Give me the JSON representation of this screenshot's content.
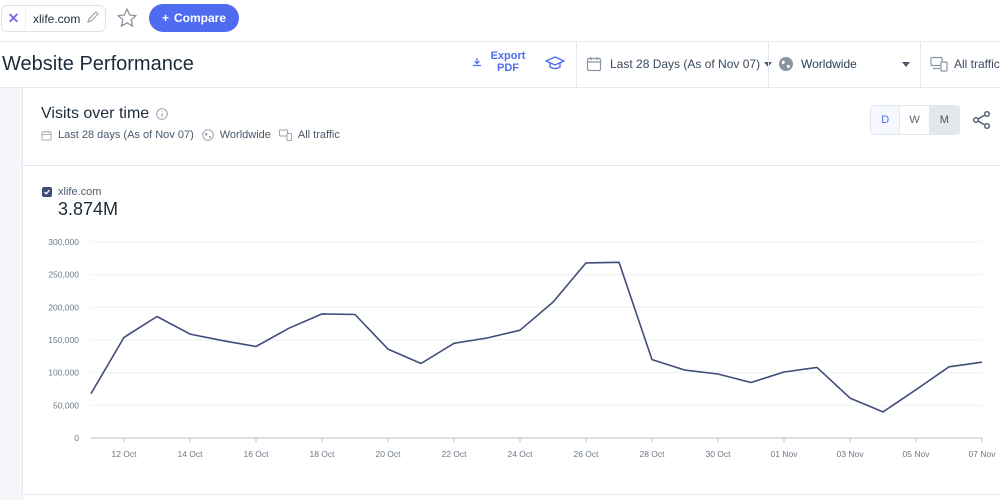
{
  "topbar": {
    "site_name": "xlife.com",
    "compare_label": "Compare"
  },
  "header": {
    "title": "Website Performance",
    "export_line1": "Export",
    "export_line2": "PDF",
    "date_range": "Last 28 Days (As of Nov 07)",
    "geo": "Worldwide",
    "traffic": "All traffic"
  },
  "card": {
    "title": "Visits over time",
    "sub_date": "Last 28 days (As of Nov 07)",
    "sub_geo": "Worldwide",
    "sub_traffic": "All traffic",
    "granularity": [
      "D",
      "W",
      "M"
    ],
    "legend_site": "xlife.com",
    "total": "3.874M"
  },
  "colors": {
    "accent": "#4f6cf0",
    "line": "#3f4e78",
    "grid": "#eef0f3"
  },
  "chart_data": {
    "type": "line",
    "x": [
      "11 Oct",
      "12 Oct",
      "13 Oct",
      "14 Oct",
      "15 Oct",
      "16 Oct",
      "17 Oct",
      "18 Oct",
      "19 Oct",
      "20 Oct",
      "21 Oct",
      "22 Oct",
      "23 Oct",
      "24 Oct",
      "25 Oct",
      "26 Oct",
      "27 Oct",
      "28 Oct",
      "29 Oct",
      "30 Oct",
      "31 Oct",
      "01 Nov",
      "02 Nov",
      "03 Nov",
      "04 Nov",
      "05 Nov",
      "06 Nov",
      "07 Nov"
    ],
    "series": [
      {
        "name": "xlife.com",
        "values": [
          68000,
          154000,
          186000,
          159000,
          149000,
          140000,
          168000,
          190000,
          189000,
          136000,
          114000,
          145000,
          153000,
          165000,
          208000,
          268000,
          269000,
          120000,
          104000,
          98000,
          85000,
          101000,
          108000,
          61000,
          40000,
          74000,
          109000,
          116000
        ]
      }
    ],
    "x_tick_labels": [
      "12 Oct",
      "14 Oct",
      "16 Oct",
      "18 Oct",
      "20 Oct",
      "22 Oct",
      "24 Oct",
      "26 Oct",
      "28 Oct",
      "30 Oct",
      "01 Nov",
      "03 Nov",
      "05 Nov",
      "07 Nov"
    ],
    "y_tick_labels": [
      "0",
      "50,000",
      "100,000",
      "150,000",
      "200,000",
      "250,000",
      "300,000"
    ],
    "ylim": [
      0,
      300000
    ],
    "grid": true
  }
}
